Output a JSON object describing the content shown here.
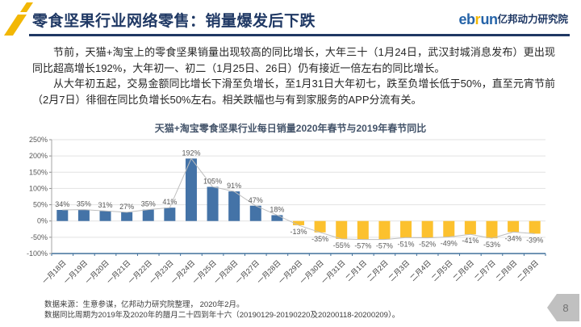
{
  "header": {
    "title": "零食坚果行业网络零售：销量爆发后下跌",
    "logo": {
      "eb": "eb",
      "r": "r",
      "un": "un",
      "suffix": "亿邦动力研究院"
    }
  },
  "body": {
    "paragraphs": [
      "节前，天猫+淘宝上的零食坚果销量出现较高的同比增长，大年三十（1月24日，武汉封城消息发布）更出现同比超高增长192%，大年初一、初二（1月25日、26日）仍有接近一倍左右的同比增长。",
      "从大年初五起，交易金额同比增长下滑至负增长，至1月31日大年初七，跌至负增长低于50%，直至元宵节前（2月7日）徘徊在同比负增长50%左右。相关跌幅也与有到家服务的APP分流有关。"
    ]
  },
  "chart_data": {
    "type": "bar",
    "title": "天猫+淘宝零食坚果行业每日销量2020年春节与2019年春节同比",
    "categories": [
      "一月18日",
      "一月19日",
      "一月20日",
      "一月21日",
      "一月22日",
      "一月23日",
      "一月24日",
      "一月25日",
      "一月26日",
      "一月27日",
      "一月28日",
      "一月29日",
      "一月30日",
      "一月31日",
      "二月1日",
      "二月2日",
      "二月3日",
      "二月4日",
      "二月5日",
      "二月6日",
      "二月7日",
      "二月8日",
      "二月9日"
    ],
    "values": [
      34,
      35,
      31,
      27,
      35,
      41,
      192,
      105,
      91,
      47,
      18,
      -13,
      -35,
      -55,
      -57,
      -57,
      -51,
      -52,
      -49,
      -41,
      -53,
      -34,
      -39
    ],
    "unit": "%",
    "xlabel": "",
    "ylabel": "",
    "ylim": [
      -100,
      250
    ],
    "ytick_step": 50,
    "grid": true,
    "legend_position": "none",
    "colors": {
      "positive_bar": "#4473A7",
      "negative_bar": "#FCC12E",
      "trend_line": "#BFBFBF",
      "axis": "#41719C",
      "gridline": "#E2E2E2",
      "label_text": "#595959"
    }
  },
  "footer": {
    "notes": [
      "数据来源：生意参谋，亿邦动力研究院整理， 2020年2月。",
      "数据同比周期为2019年及2020年的腊月二十四到年十六（20190129-20190220及20200118-20200209）。"
    ]
  },
  "page": {
    "number": "8"
  },
  "theme": {
    "accent_navy": "#1F3864",
    "accent_yellow": "#F2B705"
  }
}
